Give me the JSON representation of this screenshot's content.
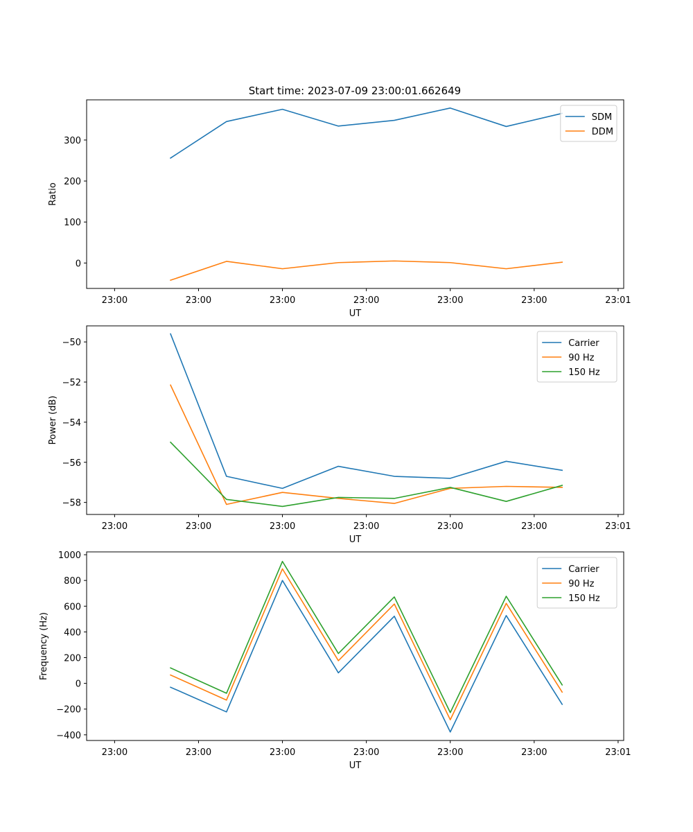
{
  "figure": {
    "title": "Start time: 2023-07-09 23:00:01.662649"
  },
  "colors": {
    "blue": "#1f77b4",
    "orange": "#ff7f0e",
    "green": "#2ca02c"
  },
  "chart_data": [
    {
      "type": "line",
      "title": "Start time: 2023-07-09 23:00:01.662649",
      "xlabel": "UT",
      "ylabel": "Ratio",
      "x": [
        1,
        2,
        3,
        4,
        5,
        6,
        7,
        8
      ],
      "xlim": [
        -0.5,
        9.1
      ],
      "xticks": [
        {
          "value": 0,
          "label": "23:00"
        },
        {
          "value": 1.5,
          "label": "23:00"
        },
        {
          "value": 3,
          "label": "23:00"
        },
        {
          "value": 4.5,
          "label": "23:00"
        },
        {
          "value": 6,
          "label": "23:00"
        },
        {
          "value": 7.5,
          "label": "23:00"
        },
        {
          "value": 9,
          "label": "23:01"
        }
      ],
      "ylim": [
        -62,
        398
      ],
      "yticks": [
        0,
        100,
        200,
        300
      ],
      "legend": "top-right",
      "series": [
        {
          "name": "SDM",
          "color": "#1f77b4",
          "values": [
            256,
            345,
            375,
            334,
            348,
            378,
            333,
            365
          ]
        },
        {
          "name": "DDM",
          "color": "#ff7f0e",
          "values": [
            -42,
            4,
            -14,
            1,
            5,
            1,
            -14,
            2
          ]
        }
      ]
    },
    {
      "type": "line",
      "title": "",
      "xlabel": "UT",
      "ylabel": "Power (dB)",
      "x": [
        1,
        2,
        3,
        4,
        5,
        6,
        7,
        8
      ],
      "xlim": [
        -0.5,
        9.1
      ],
      "xticks": [
        {
          "value": 0,
          "label": "23:00"
        },
        {
          "value": 1.5,
          "label": "23:00"
        },
        {
          "value": 3,
          "label": "23:00"
        },
        {
          "value": 4.5,
          "label": "23:00"
        },
        {
          "value": 6,
          "label": "23:00"
        },
        {
          "value": 7.5,
          "label": "23:00"
        },
        {
          "value": 9,
          "label": "23:01"
        }
      ],
      "ylim": [
        -58.6,
        -49.2
      ],
      "yticks": [
        -58,
        -56,
        -54,
        -52,
        -50
      ],
      "ytick_labels": [
        "−58",
        "−56",
        "−54",
        "−52",
        "−50"
      ],
      "legend": "top-right",
      "series": [
        {
          "name": "Carrier",
          "color": "#1f77b4",
          "values": [
            -49.6,
            -56.7,
            -57.3,
            -56.2,
            -56.7,
            -56.8,
            -55.95,
            -56.4
          ]
        },
        {
          "name": "90 Hz",
          "color": "#ff7f0e",
          "values": [
            -52.15,
            -58.1,
            -57.5,
            -57.8,
            -58.05,
            -57.3,
            -57.2,
            -57.25
          ]
        },
        {
          "name": "150 Hz",
          "color": "#2ca02c",
          "values": [
            -55.0,
            -57.85,
            -58.2,
            -57.75,
            -57.8,
            -57.25,
            -57.95,
            -57.15
          ]
        }
      ]
    },
    {
      "type": "line",
      "title": "",
      "xlabel": "UT",
      "ylabel": "Frequency (Hz)",
      "x": [
        1,
        2,
        3,
        4,
        5,
        6,
        7,
        8
      ],
      "xlim": [
        -0.5,
        9.1
      ],
      "xticks": [
        {
          "value": 0,
          "label": "23:00"
        },
        {
          "value": 1.5,
          "label": "23:00"
        },
        {
          "value": 3,
          "label": "23:00"
        },
        {
          "value": 4.5,
          "label": "23:00"
        },
        {
          "value": 6,
          "label": "23:00"
        },
        {
          "value": 7.5,
          "label": "23:00"
        },
        {
          "value": 9,
          "label": "23:01"
        }
      ],
      "ylim": [
        -444,
        1022
      ],
      "yticks": [
        -400,
        -200,
        0,
        200,
        400,
        600,
        800,
        1000
      ],
      "ytick_labels": [
        "−400",
        "−200",
        "0",
        "200",
        "400",
        "600",
        "800",
        "1000"
      ],
      "legend": "top-right",
      "series": [
        {
          "name": "Carrier",
          "color": "#1f77b4",
          "values": [
            -30,
            -222,
            800,
            82,
            522,
            -378,
            527,
            -163
          ]
        },
        {
          "name": "90 Hz",
          "color": "#ff7f0e",
          "values": [
            65,
            -130,
            890,
            176,
            617,
            -283,
            622,
            -68
          ]
        },
        {
          "name": "150 Hz",
          "color": "#2ca02c",
          "values": [
            120,
            -77,
            948,
            232,
            672,
            -227,
            677,
            -12
          ]
        }
      ]
    }
  ]
}
